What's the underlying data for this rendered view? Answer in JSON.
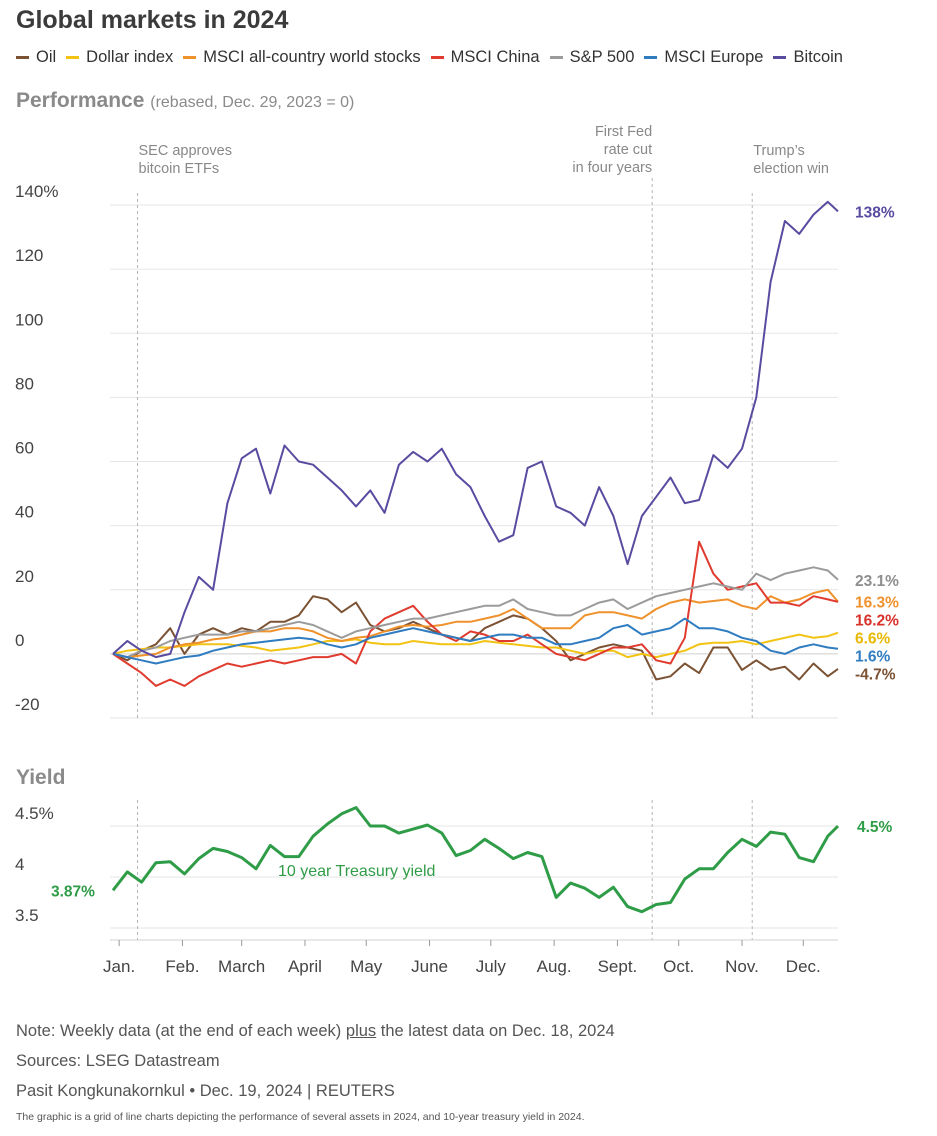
{
  "title": "Global markets in 2024",
  "performance": {
    "heading": "Performance",
    "subheading": "(rebased, Dec. 29, 2023 = 0)"
  },
  "yield_section": {
    "heading": "Yield"
  },
  "notes": {
    "note_prefix": "Note: Weekly data (at the end of each week) ",
    "note_plus": "plus",
    "note_suffix": " the latest data on Dec. 18, 2024",
    "sources": "Sources: LSEG Datastream",
    "credit": "Pasit Kongkunakornkul • Dec. 19, 2024 | REUTERS"
  },
  "caption": "The graphic is a grid of line charts depicting the performance of several assets in 2024, and 10-year treasury yield in 2024.",
  "chart_data": [
    {
      "type": "line",
      "title": "Performance",
      "subtitle": "(rebased, Dec. 29, 2023 = 0)",
      "ylim": [
        -20,
        145
      ],
      "y_ticks": [
        "140%",
        "120",
        "100",
        "80",
        "60",
        "40",
        "20",
        "0",
        "-20"
      ],
      "y_tick_values": [
        140,
        120,
        100,
        80,
        60,
        40,
        20,
        0,
        -20
      ],
      "x_start": "2023-12-29",
      "x_end": "2024-12-18",
      "x_ticks": [
        "Jan.",
        "Feb.",
        "March",
        "April",
        "May",
        "June",
        "July",
        "Aug.",
        "Sept.",
        "Oct.",
        "Nov.",
        "Dec."
      ],
      "x_tick_dates": [
        "2024-01-01",
        "2024-02-01",
        "2024-03-01",
        "2024-04-01",
        "2024-05-01",
        "2024-06-01",
        "2024-07-01",
        "2024-08-01",
        "2024-09-01",
        "2024-10-01",
        "2024-11-01",
        "2024-12-01"
      ],
      "grid": true,
      "legend_position": "top",
      "annotations": [
        {
          "date": "2024-01-10",
          "text": "SEC approves bitcoin ETFs",
          "lines": [
            "SEC approves",
            "bitcoin ETFs"
          ],
          "align": "start"
        },
        {
          "date": "2024-09-18",
          "text": "First Fed rate cut in four years",
          "lines": [
            "First Fed",
            "rate cut",
            "in four years"
          ],
          "align": "end"
        },
        {
          "date": "2024-11-06",
          "text": "Trump's election win",
          "lines": [
            "Trump’s",
            "election win"
          ],
          "align": "start"
        }
      ],
      "dates": [
        "2023-12-29",
        "2024-01-05",
        "2024-01-12",
        "2024-01-19",
        "2024-01-26",
        "2024-02-02",
        "2024-02-09",
        "2024-02-16",
        "2024-02-23",
        "2024-03-01",
        "2024-03-08",
        "2024-03-15",
        "2024-03-22",
        "2024-03-29",
        "2024-04-05",
        "2024-04-12",
        "2024-04-19",
        "2024-04-26",
        "2024-05-03",
        "2024-05-10",
        "2024-05-17",
        "2024-05-24",
        "2024-05-31",
        "2024-06-07",
        "2024-06-14",
        "2024-06-21",
        "2024-06-28",
        "2024-07-05",
        "2024-07-12",
        "2024-07-19",
        "2024-07-26",
        "2024-08-02",
        "2024-08-09",
        "2024-08-16",
        "2024-08-23",
        "2024-08-30",
        "2024-09-06",
        "2024-09-13",
        "2024-09-20",
        "2024-09-27",
        "2024-10-04",
        "2024-10-11",
        "2024-10-18",
        "2024-10-25",
        "2024-11-01",
        "2024-11-08",
        "2024-11-15",
        "2024-11-22",
        "2024-11-29",
        "2024-12-06",
        "2024-12-13",
        "2024-12-18"
      ],
      "series": [
        {
          "name": "Oil",
          "color": "#7b5233",
          "end_label": "-4.7%",
          "label_color": "#7b5233",
          "values": [
            0,
            -2,
            1,
            3,
            8,
            0,
            6,
            8,
            6,
            8,
            7,
            10,
            10,
            12,
            18,
            17,
            13,
            16,
            9,
            7,
            8,
            10,
            8,
            6,
            5,
            4,
            8,
            10,
            12,
            11,
            8,
            4,
            -2,
            0,
            2,
            3,
            2,
            1,
            -8,
            -7,
            -3,
            -6,
            2,
            2,
            -5,
            -2,
            -5,
            -4,
            -8,
            -3,
            -7,
            -4.7
          ]
        },
        {
          "name": "Dollar index",
          "color": "#f2c313",
          "end_label": "6.6%",
          "label_color": "#e8b800",
          "values": [
            0,
            1,
            1.5,
            2,
            2,
            2.5,
            3,
            3,
            3,
            2.5,
            2,
            1,
            1.5,
            2,
            3,
            4,
            4,
            4.5,
            3.5,
            3,
            3,
            4,
            3.5,
            3,
            3,
            3,
            4,
            3.5,
            3,
            2.5,
            2,
            2,
            1,
            0,
            1,
            1,
            -1,
            0,
            -1,
            0,
            1,
            3,
            3.5,
            3.5,
            4,
            3,
            4,
            5,
            6,
            5,
            5.5,
            6.6
          ]
        },
        {
          "name": "MSCI all-country world stocks",
          "color": "#f0922c",
          "end_label": "16.3%",
          "label_color": "#f0922c",
          "values": [
            0,
            -1,
            -0.5,
            0,
            2,
            3,
            3.5,
            4.5,
            5,
            6,
            7,
            7,
            8,
            8,
            7,
            5,
            4,
            5,
            5.5,
            7,
            8.5,
            9,
            8.5,
            9,
            10,
            10,
            11,
            12,
            14,
            11,
            8,
            8,
            8,
            12,
            13,
            13,
            12,
            11,
            14,
            16,
            17,
            16,
            16.5,
            17,
            15,
            14,
            18,
            16,
            17,
            19,
            20,
            16.3
          ]
        },
        {
          "name": "MSCI China",
          "color": "#e03b2f",
          "end_label": "16.2%",
          "label_color": "#d8322b",
          "values": [
            0,
            -3,
            -6,
            -10,
            -8,
            -10,
            -7,
            -5,
            -3,
            -4,
            -3,
            -2,
            -3,
            -2,
            -1,
            -1,
            0,
            -3,
            7,
            11,
            13,
            15,
            10,
            6,
            4,
            7,
            6,
            4,
            4,
            6,
            3,
            0,
            -1,
            -2,
            0,
            2,
            2,
            3,
            -2,
            -3,
            5,
            35,
            25,
            20,
            21,
            22,
            16,
            16,
            15,
            18,
            17,
            16.2
          ]
        },
        {
          "name": "S&P 500",
          "color": "#9b9b9b",
          "end_label": "23.1%",
          "label_color": "#8e8e8e",
          "values": [
            0,
            -1,
            1,
            2,
            4,
            5,
            6,
            6,
            6,
            7,
            7,
            8,
            9,
            10,
            9,
            7,
            5,
            7,
            8,
            9,
            10,
            11,
            11,
            12,
            13,
            14,
            15,
            15,
            17,
            14,
            13,
            12,
            12,
            14,
            16,
            17,
            14,
            16,
            18,
            19,
            20,
            21,
            22,
            21,
            20,
            25,
            23,
            25,
            26,
            27,
            26,
            23.1
          ]
        },
        {
          "name": "MSCI Europe",
          "color": "#2f7cc0",
          "end_label": "1.6%",
          "label_color": "#2f7cc0",
          "values": [
            0,
            -1,
            -2,
            -3,
            -2,
            -1,
            -0.5,
            1,
            2,
            3,
            3.5,
            4,
            4.5,
            5,
            4.5,
            3,
            2,
            3,
            5,
            6,
            7,
            8,
            7,
            6,
            5,
            4,
            5,
            6,
            6,
            5,
            5,
            3,
            3,
            4,
            5,
            8,
            9,
            6,
            7,
            8,
            11,
            8,
            8,
            7,
            5,
            4,
            1,
            0,
            2,
            3,
            2,
            1.6
          ]
        },
        {
          "name": "Bitcoin",
          "color": "#5a4ba0",
          "end_label": "138%",
          "label_color": "#5a4ba0",
          "values": [
            0,
            4,
            1,
            -1,
            0,
            13,
            24,
            20,
            47,
            61,
            64,
            50,
            65,
            60,
            59,
            55,
            51,
            46,
            51,
            44,
            59,
            63,
            60,
            64,
            56,
            52,
            43,
            35,
            37,
            58,
            60,
            46,
            44,
            40,
            52,
            43,
            28,
            43,
            49,
            55,
            47,
            48,
            62,
            58,
            64,
            80,
            116,
            135,
            131,
            137,
            141,
            138
          ]
        }
      ]
    },
    {
      "type": "line",
      "title": "Yield",
      "ylim": [
        3.45,
        4.75
      ],
      "y_ticks": [
        "4.5%",
        "4",
        "3.5"
      ],
      "y_tick_values": [
        4.5,
        4,
        3.5
      ],
      "x_ticks": [
        "Jan.",
        "Feb.",
        "March",
        "April",
        "May",
        "June",
        "July",
        "Aug.",
        "Sept.",
        "Oct.",
        "Nov.",
        "Dec."
      ],
      "series": [
        {
          "name": "10 year Treasury yield",
          "color": "#2f9c47",
          "start_label": "3.87%",
          "end_label": "4.5%",
          "values": [
            3.87,
            4.05,
            3.95,
            4.14,
            4.15,
            4.03,
            4.18,
            4.28,
            4.25,
            4.19,
            4.08,
            4.31,
            4.2,
            4.2,
            4.4,
            4.52,
            4.62,
            4.68,
            4.5,
            4.5,
            4.43,
            4.47,
            4.51,
            4.43,
            4.21,
            4.26,
            4.37,
            4.28,
            4.18,
            4.24,
            4.2,
            3.8,
            3.94,
            3.89,
            3.8,
            3.9,
            3.71,
            3.66,
            3.73,
            3.75,
            3.98,
            4.08,
            4.08,
            4.24,
            4.37,
            4.3,
            4.44,
            4.42,
            4.19,
            4.15,
            4.4,
            4.5
          ]
        }
      ]
    }
  ]
}
